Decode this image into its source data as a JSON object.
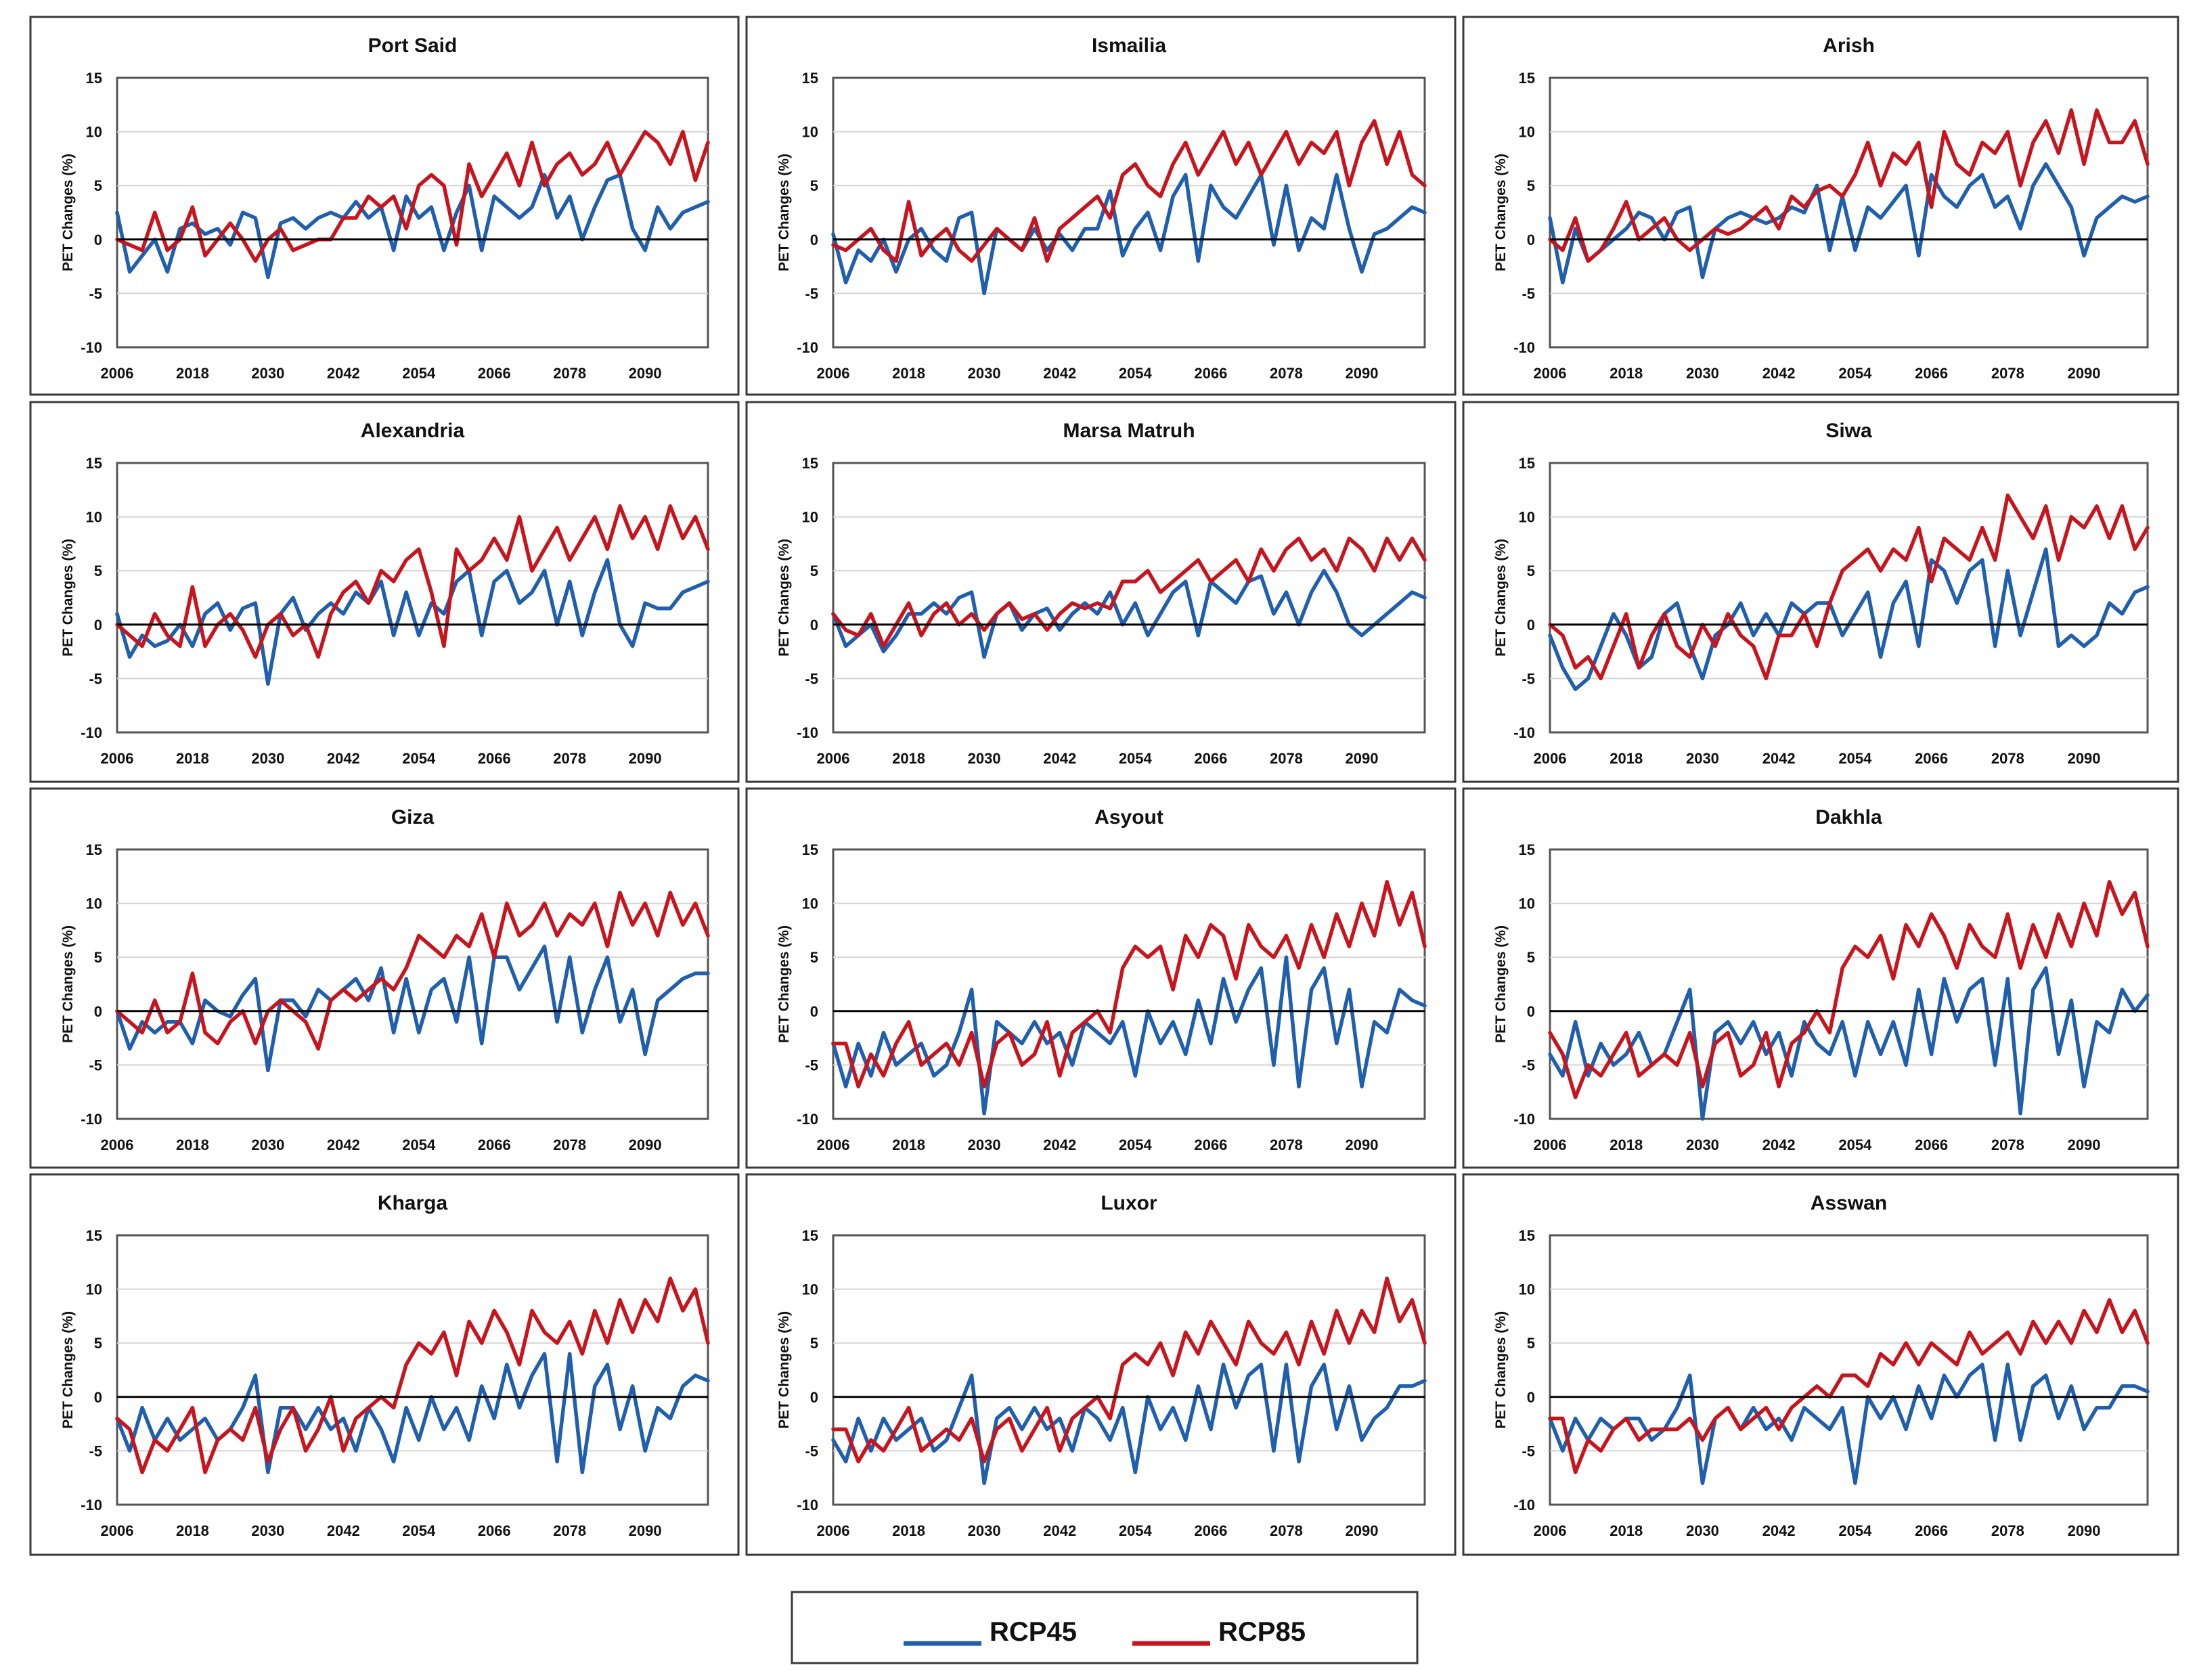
{
  "chart_data": {
    "type": "line",
    "ylabel": "PET Changes (%)",
    "ylim": [
      -10,
      15
    ],
    "yticks": [
      "15",
      "10",
      "5",
      "0",
      "-5",
      "-10"
    ],
    "xlim": [
      2006,
      2100
    ],
    "xticks": [
      "2006",
      "2018",
      "2030",
      "2042",
      "2054",
      "2066",
      "2078",
      "2090"
    ],
    "x": [
      2006,
      2008,
      2010,
      2012,
      2014,
      2016,
      2018,
      2020,
      2022,
      2024,
      2026,
      2028,
      2030,
      2032,
      2034,
      2036,
      2038,
      2040,
      2042,
      2044,
      2046,
      2048,
      2050,
      2052,
      2054,
      2056,
      2058,
      2060,
      2062,
      2064,
      2066,
      2068,
      2070,
      2072,
      2074,
      2076,
      2078,
      2080,
      2082,
      2084,
      2086,
      2088,
      2090,
      2092,
      2094,
      2096,
      2098,
      2100
    ],
    "series_names": [
      "RCP45",
      "RCP85"
    ],
    "colors": {
      "RCP45": "#1f5fad",
      "RCP85": "#c8141c"
    },
    "panels": [
      {
        "title": "Port Said",
        "RCP45": [
          2.5,
          -3,
          -1.5,
          0,
          -3,
          1,
          1.5,
          0.5,
          1,
          -0.5,
          2.5,
          2,
          -3.5,
          1.5,
          2,
          1,
          2,
          2.5,
          2,
          3.5,
          2,
          3,
          -1,
          4,
          2,
          3,
          -1,
          2.5,
          5,
          -1,
          4,
          3,
          2,
          3,
          6,
          2,
          4,
          0,
          3,
          5.5,
          6,
          1,
          -1,
          3,
          1,
          2.5,
          3,
          3.5
        ],
        "RCP85": [
          0,
          -0.5,
          -1,
          2.5,
          -1,
          0,
          3,
          -1.5,
          0,
          1.5,
          0,
          -2,
          0,
          1,
          -1,
          -0.5,
          0,
          0,
          2,
          2,
          4,
          3,
          4,
          1,
          5,
          6,
          5,
          -0.5,
          7,
          4,
          6,
          8,
          5,
          9,
          5,
          7,
          8,
          6,
          7,
          9,
          6,
          8,
          10,
          9,
          7,
          10,
          5.5,
          9
        ]
      },
      {
        "title": "Ismailia",
        "RCP45": [
          0.5,
          -4,
          -1,
          -2,
          0,
          -3,
          0,
          1,
          -1,
          -2,
          2,
          2.5,
          -5,
          1,
          0,
          -1,
          1,
          -1,
          0.5,
          -1,
          1,
          1,
          4.5,
          -1.5,
          1,
          2.5,
          -1,
          4,
          6,
          -2,
          5,
          3,
          2,
          4,
          6,
          -0.5,
          5,
          -1,
          2,
          1,
          6,
          1,
          -3,
          0.5,
          1,
          2,
          3,
          2.5
        ],
        "RCP85": [
          -0.5,
          -1,
          0,
          1,
          -1,
          -2,
          3.5,
          -1.5,
          0,
          1,
          -1,
          -2,
          -0.5,
          1,
          0,
          -1,
          2,
          -2,
          1,
          2,
          3,
          4,
          2,
          6,
          7,
          5,
          4,
          7,
          9,
          6,
          8,
          10,
          7,
          9,
          6,
          8,
          10,
          7,
          9,
          8,
          10,
          5,
          9,
          11,
          7,
          10,
          6,
          5
        ]
      },
      {
        "title": "Arish",
        "RCP45": [
          2,
          -4,
          1,
          -2,
          -1,
          0,
          1,
          2.5,
          2,
          0,
          2.5,
          3,
          -3.5,
          1,
          2,
          2.5,
          2,
          1.5,
          2,
          3,
          2.5,
          5,
          -1,
          4,
          -1,
          3,
          2,
          3.5,
          5,
          -1.5,
          6,
          4,
          3,
          5,
          6,
          3,
          4,
          1,
          5,
          7,
          5,
          3,
          -1.5,
          2,
          3,
          4,
          3.5,
          4
        ],
        "RCP85": [
          0,
          -1,
          2,
          -2,
          -1,
          1,
          3.5,
          0,
          1,
          2,
          0,
          -1,
          0,
          1,
          0.5,
          1,
          2,
          3,
          1,
          4,
          3,
          4.5,
          5,
          4,
          6,
          9,
          5,
          8,
          7,
          9,
          3,
          10,
          7,
          6,
          9,
          8,
          10,
          5,
          9,
          11,
          8,
          12,
          7,
          12,
          9,
          9,
          11,
          7
        ]
      },
      {
        "title": "Alexandria",
        "RCP45": [
          1,
          -3,
          -1,
          -2,
          -1.5,
          0,
          -2,
          1,
          2,
          -0.5,
          1.5,
          2,
          -5.5,
          1,
          2.5,
          -0.5,
          1,
          2,
          1,
          3,
          2,
          4,
          -1,
          3,
          -1,
          2,
          1,
          4,
          5,
          -1,
          4,
          5,
          2,
          3,
          5,
          0,
          4,
          -1,
          3,
          6,
          0,
          -2,
          2,
          1.5,
          1.5,
          3,
          3.5,
          4
        ],
        "RCP85": [
          0,
          -1,
          -2,
          1,
          -1,
          -2,
          3.5,
          -2,
          0,
          1,
          -0.5,
          -3,
          0,
          1,
          -1,
          0,
          -3,
          1,
          3,
          4,
          2,
          5,
          4,
          6,
          7,
          3,
          -2,
          7,
          5,
          6,
          8,
          6,
          10,
          5,
          7,
          9,
          6,
          8,
          10,
          7,
          11,
          8,
          10,
          7,
          11,
          8,
          10,
          7
        ]
      },
      {
        "title": "Marsa Matruh",
        "RCP45": [
          1,
          -2,
          -1,
          0,
          -2.5,
          -1,
          1,
          1,
          2,
          1,
          2.5,
          3,
          -3,
          1,
          2,
          -0.5,
          1,
          1.5,
          -0.5,
          1,
          2,
          1,
          3,
          0,
          2,
          -1,
          1,
          3,
          4,
          -1,
          4,
          3,
          2,
          4,
          4.5,
          1,
          3,
          0,
          3,
          5,
          3,
          0,
          -1,
          0,
          1,
          2,
          3,
          2.5
        ],
        "RCP85": [
          1,
          -0.5,
          -1,
          1,
          -2,
          0,
          2,
          -1,
          1,
          2,
          0,
          1,
          -0.5,
          1,
          2,
          0.5,
          1,
          -0.5,
          1,
          2,
          1.5,
          2,
          1.5,
          4,
          4,
          5,
          3,
          4,
          5,
          6,
          4,
          5,
          6,
          4,
          7,
          5,
          7,
          8,
          6,
          7,
          5,
          8,
          7,
          5,
          8,
          6,
          8,
          6
        ]
      },
      {
        "title": "Siwa",
        "RCP45": [
          -1,
          -4,
          -6,
          -5,
          -2,
          1,
          -1,
          -4,
          -3,
          1,
          2,
          -2,
          -5,
          -1,
          0,
          2,
          -1,
          1,
          -1,
          2,
          1,
          2,
          2,
          -1,
          1,
          3,
          -3,
          2,
          4,
          -2,
          6,
          5,
          2,
          5,
          6,
          -2,
          5,
          -1,
          3,
          7,
          -2,
          -1,
          -2,
          -1,
          2,
          1,
          3,
          3.5
        ],
        "RCP85": [
          0,
          -1,
          -4,
          -3,
          -5,
          -2,
          1,
          -4,
          -1,
          1,
          -2,
          -3,
          0,
          -2,
          1,
          -1,
          -2,
          -5,
          -1,
          -1,
          1,
          -2,
          2,
          5,
          6,
          7,
          5,
          7,
          6,
          9,
          4,
          8,
          7,
          6,
          9,
          6,
          12,
          10,
          8,
          11,
          6,
          10,
          9,
          11,
          8,
          11,
          7,
          9
        ]
      },
      {
        "title": "Giza",
        "RCP45": [
          0,
          -3.5,
          -1,
          -2,
          -1,
          -1,
          -3,
          1,
          0,
          -0.5,
          1.5,
          3,
          -5.5,
          1,
          1,
          -0.5,
          2,
          1,
          2,
          3,
          1,
          4,
          -2,
          3,
          -2,
          2,
          3,
          -1,
          5,
          -3,
          5,
          5,
          2,
          4,
          6,
          -1,
          5,
          -2,
          2,
          5,
          -1,
          2,
          -4,
          1,
          2,
          3,
          3.5,
          3.5
        ],
        "RCP85": [
          0,
          -1,
          -2,
          1,
          -2,
          -1,
          3.5,
          -2,
          -3,
          -1,
          0,
          -3,
          0,
          1,
          0,
          -1,
          -3.5,
          1,
          2,
          1,
          2,
          3,
          2,
          4,
          7,
          6,
          5,
          7,
          6,
          9,
          5,
          10,
          7,
          8,
          10,
          7,
          9,
          8,
          10,
          6,
          11,
          8,
          10,
          7,
          11,
          8,
          10,
          7
        ]
      },
      {
        "title": "Asyout",
        "RCP45": [
          -3,
          -7,
          -3,
          -6,
          -2,
          -5,
          -4,
          -3,
          -6,
          -5,
          -2,
          2,
          -9.5,
          -1,
          -2,
          -3,
          -1,
          -3,
          -2,
          -5,
          -1,
          -2,
          -3,
          -1,
          -6,
          0,
          -3,
          -1,
          -4,
          1,
          -3,
          3,
          -1,
          2,
          4,
          -5,
          5,
          -7,
          2,
          4,
          -3,
          2,
          -7,
          -1,
          -2,
          2,
          1,
          0.5
        ],
        "RCP85": [
          -3,
          -3,
          -7,
          -4,
          -6,
          -3,
          -1,
          -5,
          -4,
          -3,
          -5,
          -2,
          -7,
          -3,
          -2,
          -5,
          -4,
          -1,
          -6,
          -2,
          -1,
          0,
          -2,
          4,
          6,
          5,
          6,
          2,
          7,
          5,
          8,
          7,
          3,
          8,
          6,
          5,
          7,
          4,
          8,
          5,
          9,
          6,
          10,
          7,
          12,
          8,
          11,
          6
        ]
      },
      {
        "title": "Dakhla",
        "RCP45": [
          -4,
          -6,
          -1,
          -6,
          -3,
          -5,
          -4,
          -2,
          -5,
          -4,
          -1,
          2,
          -10,
          -2,
          -1,
          -3,
          -1,
          -4,
          -2,
          -6,
          -1,
          -3,
          -4,
          -1,
          -6,
          -1,
          -4,
          -1,
          -5,
          2,
          -4,
          3,
          -1,
          2,
          3,
          -5,
          3,
          -9.5,
          2,
          4,
          -4,
          1,
          -7,
          -1,
          -2,
          2,
          0,
          1.5
        ],
        "RCP85": [
          -2,
          -4,
          -8,
          -5,
          -6,
          -4,
          -2,
          -6,
          -5,
          -4,
          -5,
          -2,
          -7,
          -3,
          -2,
          -6,
          -5,
          -2,
          -7,
          -3,
          -2,
          0,
          -2,
          4,
          6,
          5,
          7,
          3,
          8,
          6,
          9,
          7,
          4,
          8,
          6,
          5,
          9,
          4,
          8,
          5,
          9,
          6,
          10,
          7,
          12,
          9,
          11,
          6
        ]
      },
      {
        "title": "Kharga",
        "RCP45": [
          -2,
          -5,
          -1,
          -4,
          -2,
          -4,
          -3,
          -2,
          -4,
          -3,
          -1,
          2,
          -7,
          -1,
          -1,
          -3,
          -1,
          -3,
          -2,
          -5,
          -1,
          -3,
          -6,
          -1,
          -4,
          0,
          -3,
          -1,
          -4,
          1,
          -2,
          3,
          -1,
          2,
          4,
          -6,
          4,
          -7,
          1,
          3,
          -3,
          1,
          -5,
          -1,
          -2,
          1,
          2,
          1.5
        ],
        "RCP85": [
          -2,
          -3,
          -7,
          -4,
          -5,
          -3,
          -1,
          -7,
          -4,
          -3,
          -4,
          -1,
          -6,
          -3,
          -1,
          -5,
          -3,
          0,
          -5,
          -2,
          -1,
          0,
          -1,
          3,
          5,
          4,
          6,
          2,
          7,
          5,
          8,
          6,
          3,
          8,
          6,
          5,
          7,
          4,
          8,
          5,
          9,
          6,
          9,
          7,
          11,
          8,
          10,
          5
        ]
      },
      {
        "title": "Luxor",
        "RCP45": [
          -4,
          -6,
          -2,
          -5,
          -2,
          -4,
          -3,
          -2,
          -5,
          -4,
          -1,
          2,
          -8,
          -2,
          -1,
          -3,
          -1,
          -3,
          -2,
          -5,
          -1,
          -2,
          -4,
          -1,
          -7,
          0,
          -3,
          -1,
          -4,
          1,
          -3,
          3,
          -1,
          2,
          3,
          -5,
          3,
          -6,
          1,
          3,
          -3,
          1,
          -4,
          -2,
          -1,
          1,
          1,
          1.5
        ],
        "RCP85": [
          -3,
          -3,
          -6,
          -4,
          -5,
          -3,
          -1,
          -5,
          -4,
          -3,
          -4,
          -2,
          -6,
          -3,
          -2,
          -5,
          -3,
          -1,
          -5,
          -2,
          -1,
          0,
          -2,
          3,
          4,
          3,
          5,
          2,
          6,
          4,
          7,
          5,
          3,
          7,
          5,
          4,
          6,
          3,
          7,
          4,
          8,
          5,
          8,
          6,
          11,
          7,
          9,
          5
        ]
      },
      {
        "title": "Asswan",
        "RCP45": [
          -2,
          -5,
          -2,
          -4,
          -2,
          -3,
          -2,
          -2,
          -4,
          -3,
          -1,
          2,
          -8,
          -2,
          -1,
          -3,
          -1,
          -3,
          -2,
          -4,
          -1,
          -2,
          -3,
          -1,
          -8,
          0,
          -2,
          0,
          -3,
          1,
          -2,
          2,
          0,
          2,
          3,
          -4,
          3,
          -4,
          1,
          2,
          -2,
          1,
          -3,
          -1,
          -1,
          1,
          1,
          0.5
        ],
        "RCP85": [
          -2,
          -2,
          -7,
          -4,
          -5,
          -3,
          -2,
          -4,
          -3,
          -3,
          -3,
          -2,
          -4,
          -2,
          -1,
          -3,
          -2,
          -1,
          -3,
          -1,
          0,
          1,
          0,
          2,
          2,
          1,
          4,
          3,
          5,
          3,
          5,
          4,
          3,
          6,
          4,
          5,
          6,
          4,
          7,
          5,
          7,
          5,
          8,
          6,
          9,
          6,
          8,
          5
        ]
      }
    ],
    "legend": [
      {
        "name": "RCP45",
        "color": "#1f5fad"
      },
      {
        "name": "RCP85",
        "color": "#c8141c"
      }
    ]
  }
}
